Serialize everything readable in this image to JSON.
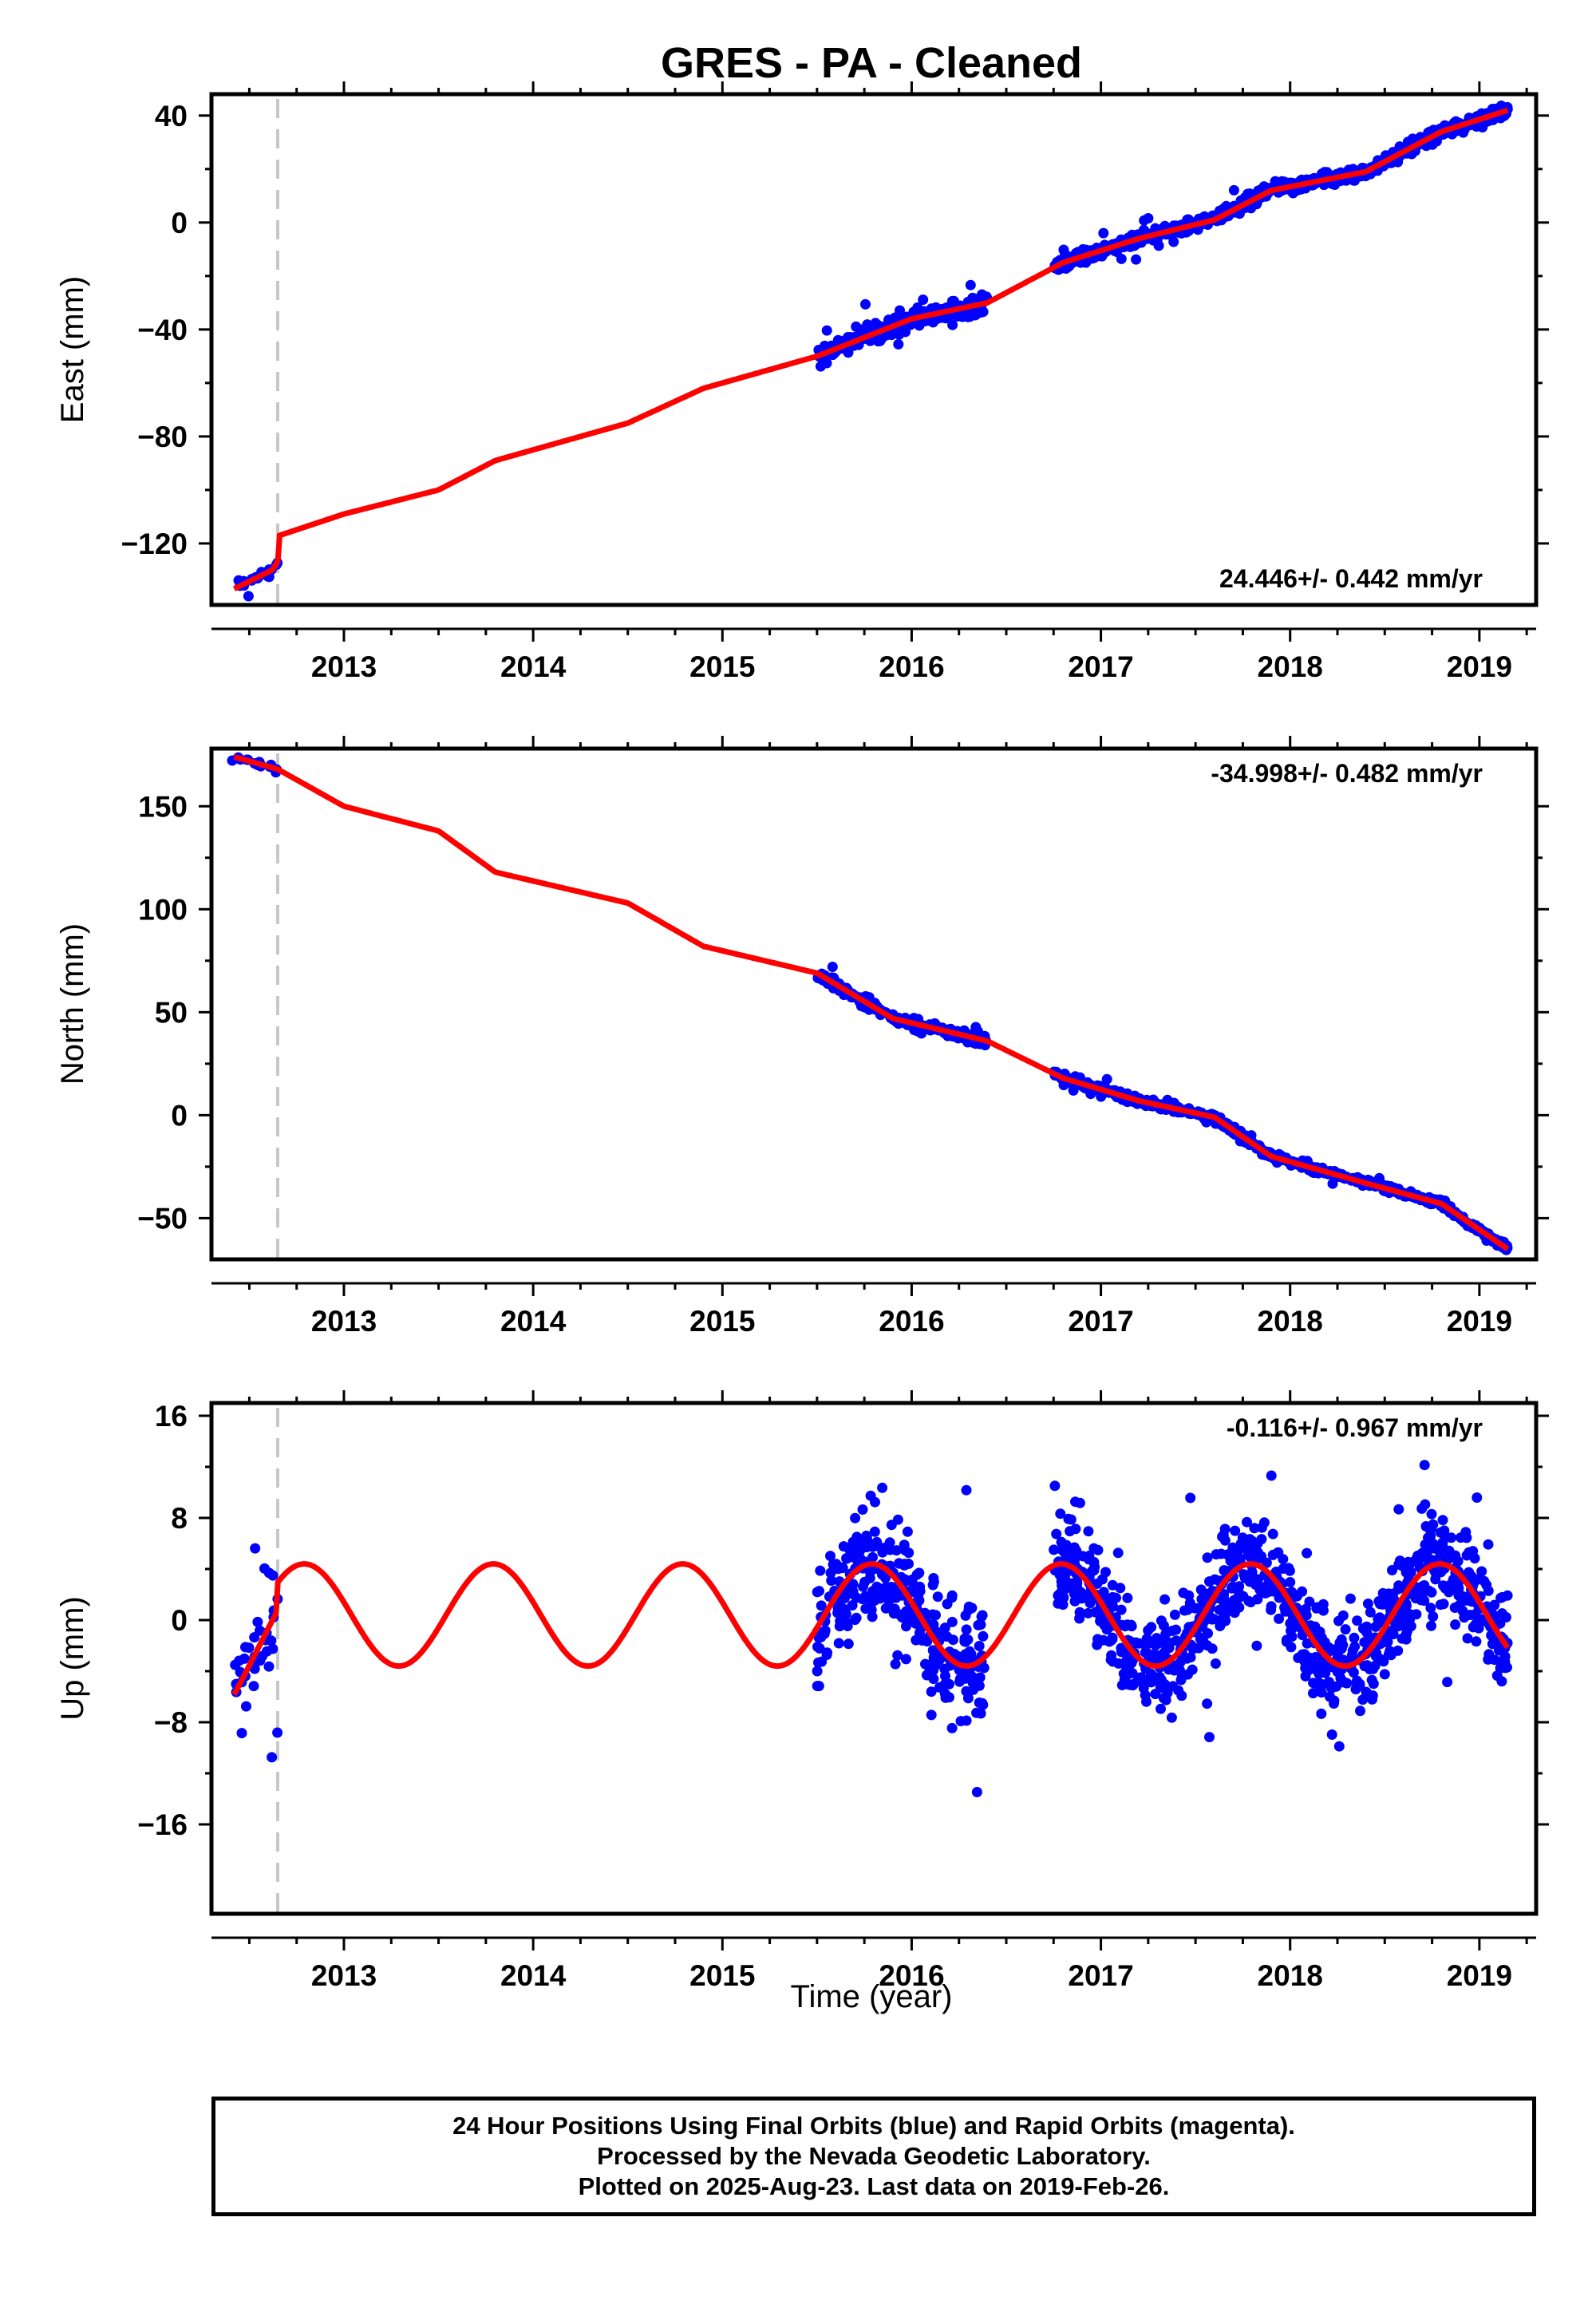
{
  "colors": {
    "final_orbits": "#0000ff",
    "model_fit": "#ff0000",
    "offset_line": "#c8c8c8"
  },
  "footer": {
    "line1": "24 Hour Positions Using Final Orbits (blue) and Rapid Orbits (magenta).",
    "line2": "Processed by the Nevada Geodetic Laboratory.",
    "line3": "Plotted on 2025-Aug-23. Last data on 2019-Feb-26."
  },
  "chart_data": {
    "type": "scatter",
    "title": "GRES  - PA - Cleaned",
    "xlabel": "Time (year)",
    "x_ticks": [
      "2013",
      "2014",
      "2015",
      "2016",
      "2017",
      "2018",
      "2019"
    ],
    "xlim": [
      2012.3,
      2019.3
    ],
    "offset_epoch": 2012.65,
    "grid": false,
    "panels": [
      {
        "id": "east",
        "ylabel": "East (mm)",
        "ylim": [
          -143,
          48
        ],
        "y_ticks": [
          40,
          0,
          -40,
          -80,
          -120
        ],
        "y_tick_labels": [
          "40",
          "0",
          "−40",
          "−80",
          "−120"
        ],
        "rate_label": "24.446+/- 0.442 mm/yr",
        "rate_position": "bottom-right",
        "trend": [
          [
            2012.42,
            -137
          ],
          [
            2012.62,
            -130
          ],
          [
            2012.65,
            -127
          ],
          [
            2012.66,
            -117
          ],
          [
            2013.0,
            -109
          ],
          [
            2013.5,
            -100
          ],
          [
            2013.8,
            -89
          ],
          [
            2014.5,
            -75
          ],
          [
            2014.9,
            -62
          ],
          [
            2015.5,
            -50
          ],
          [
            2016.0,
            -36
          ],
          [
            2016.4,
            -30
          ],
          [
            2016.8,
            -15
          ],
          [
            2017.2,
            -6
          ],
          [
            2017.6,
            1
          ],
          [
            2017.9,
            12
          ],
          [
            2018.4,
            19
          ],
          [
            2018.8,
            34
          ],
          [
            2019.15,
            42
          ]
        ],
        "scatter_clusters": [
          {
            "x_range": [
              2012.4,
              2012.65
            ],
            "y_spread": 2.0,
            "count": 18
          },
          {
            "x_range": [
              2015.5,
              2016.4
            ],
            "y_spread": 3.0,
            "count": 220
          },
          {
            "x_range": [
              2016.75,
              2019.15
            ],
            "y_spread": 2.2,
            "count": 600
          }
        ]
      },
      {
        "id": "north",
        "ylabel": "North (mm)",
        "ylim": [
          -70,
          178
        ],
        "y_ticks": [
          150,
          100,
          50,
          0,
          -50
        ],
        "y_tick_labels": [
          "150",
          "100",
          "50",
          "0",
          "−50"
        ],
        "rate_label": "-34.998+/- 0.482 mm/yr",
        "rate_position": "top-right",
        "trend": [
          [
            2012.42,
            174
          ],
          [
            2012.65,
            168
          ],
          [
            2013.0,
            150
          ],
          [
            2013.5,
            138
          ],
          [
            2013.8,
            118
          ],
          [
            2014.5,
            103
          ],
          [
            2014.9,
            82
          ],
          [
            2015.5,
            69
          ],
          [
            2015.9,
            47
          ],
          [
            2016.4,
            36
          ],
          [
            2016.8,
            18
          ],
          [
            2017.2,
            7
          ],
          [
            2017.6,
            -1
          ],
          [
            2017.9,
            -20
          ],
          [
            2018.4,
            -33
          ],
          [
            2018.8,
            -43
          ],
          [
            2019.15,
            -65
          ]
        ],
        "scatter_clusters": [
          {
            "x_range": [
              2012.4,
              2012.65
            ],
            "y_spread": 1.6,
            "count": 18
          },
          {
            "x_range": [
              2015.5,
              2016.4
            ],
            "y_spread": 2.2,
            "count": 220
          },
          {
            "x_range": [
              2016.75,
              2019.15
            ],
            "y_spread": 1.6,
            "count": 600
          }
        ]
      },
      {
        "id": "up",
        "ylabel": "Up (mm)",
        "ylim": [
          -23,
          17
        ],
        "y_ticks": [
          16,
          8,
          0,
          -8,
          -16
        ],
        "y_tick_labels": [
          "16",
          "8",
          "0",
          "−8",
          "−16"
        ],
        "rate_label": "-0.116+/- 0.967 mm/yr",
        "rate_position": "top-right",
        "seasonal_amplitude": 4.0,
        "seasonal_phase_peak": 0.79,
        "trend_span": [
          2012.42,
          2019.15
        ],
        "scatter_clusters": [
          {
            "x_range": [
              2012.4,
              2012.65
            ],
            "y_spread": 3.5,
            "count": 40
          },
          {
            "x_range": [
              2015.5,
              2016.4
            ],
            "y_spread": 3.8,
            "count": 320
          },
          {
            "x_range": [
              2016.75,
              2019.15
            ],
            "y_spread": 3.2,
            "count": 850
          }
        ]
      }
    ]
  }
}
